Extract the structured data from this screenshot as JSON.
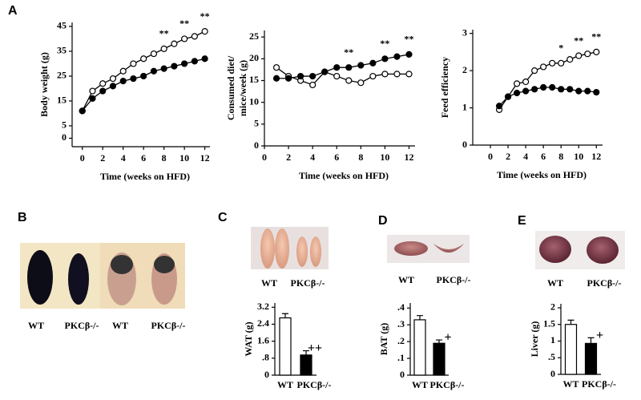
{
  "figure": {
    "panel_letters": [
      "A",
      "B",
      "C",
      "D",
      "E"
    ],
    "photo_captions": {
      "B": [
        "WT",
        "PKCβ-/-",
        "WT",
        "PKCβ-/-"
      ],
      "C": [
        "WT",
        "PKCβ-/-"
      ],
      "D": [
        "WT",
        "PKCβ-/-"
      ],
      "E": [
        "WT",
        "PKCβ-/-"
      ]
    }
  },
  "chart_data": [
    {
      "type": "line",
      "x_label": "Time (weeks on HFD)",
      "y_label": "Body weight (g)",
      "x": [
        0,
        1,
        2,
        3,
        4,
        5,
        6,
        7,
        8,
        9,
        10,
        11,
        12
      ],
      "series": [
        {
          "color": "#000000",
          "marker_fill": "#ffffff",
          "values": [
            11,
            19,
            22,
            24,
            27,
            30,
            32,
            34,
            36,
            38,
            40,
            41,
            43
          ]
        },
        {
          "color": "#000000",
          "marker_fill": "#000000",
          "values": [
            11,
            16,
            19,
            21,
            23,
            24,
            25,
            27,
            28,
            29,
            30,
            31,
            32
          ]
        }
      ],
      "xlim": [
        -1,
        12.5
      ],
      "xticks": [
        0,
        2,
        4,
        6,
        8,
        10,
        12
      ],
      "ylim": [
        -3.4,
        46.6
      ],
      "yticks": [
        0,
        5,
        15,
        25,
        35,
        45
      ],
      "annotations": [
        {
          "x": 8,
          "text": "**"
        },
        {
          "x": 10,
          "text": "**"
        },
        {
          "x": 12,
          "text": "**"
        }
      ]
    },
    {
      "type": "line",
      "x_label": "Time (weeks on HFD)",
      "y_label": [
        "Consumed diet/",
        "mice/week (g)"
      ],
      "x": [
        1,
        2,
        3,
        4,
        5,
        6,
        7,
        8,
        9,
        10,
        11,
        12
      ],
      "series": [
        {
          "color": "#000000",
          "marker_fill": "#ffffff",
          "values": [
            18,
            16,
            15,
            14,
            17,
            16,
            15,
            14.5,
            16,
            16.5,
            16.5,
            16.5
          ]
        },
        {
          "color": "#000000",
          "marker_fill": "#000000",
          "values": [
            15.5,
            15.5,
            16,
            16,
            17,
            18,
            18,
            18.5,
            19,
            20,
            20.5,
            21
          ]
        }
      ],
      "xlim": [
        0,
        12.5
      ],
      "xticks": [
        0,
        2,
        4,
        6,
        8,
        10,
        12
      ],
      "ylim": [
        0,
        26.5
      ],
      "yticks": [
        0,
        5,
        10,
        15,
        20,
        25
      ],
      "annotations": [
        {
          "x": 7,
          "text": "**"
        },
        {
          "x": 10,
          "text": "**"
        },
        {
          "x": 12,
          "text": "**"
        }
      ]
    },
    {
      "type": "line",
      "x_label": "Time (weeks on HFD)",
      "y_label": "Feed efficiency",
      "x": [
        1,
        2,
        3,
        4,
        5,
        6,
        7,
        8,
        9,
        10,
        11,
        12
      ],
      "series": [
        {
          "color": "#000000",
          "marker_fill": "#ffffff",
          "values": [
            0.95,
            1.3,
            1.65,
            1.7,
            2.0,
            2.1,
            2.2,
            2.2,
            2.3,
            2.4,
            2.45,
            2.5
          ]
        },
        {
          "color": "#000000",
          "marker_fill": "#000000",
          "values": [
            1.05,
            1.3,
            1.4,
            1.45,
            1.5,
            1.55,
            1.55,
            1.5,
            1.5,
            1.45,
            1.45,
            1.42
          ]
        }
      ],
      "xlim": [
        -2,
        12.7
      ],
      "xticks": [
        0,
        2,
        4,
        6,
        8,
        10,
        12
      ],
      "ylim": [
        0,
        3.1
      ],
      "yticks": [
        0,
        1,
        2,
        3
      ],
      "annotations": [
        {
          "x": 8,
          "text": "*"
        },
        {
          "x": 10,
          "text": "**"
        },
        {
          "x": 12,
          "text": "**"
        }
      ]
    },
    {
      "type": "bar",
      "y_label": "WAT (g)",
      "categories": [
        "WT",
        "PKCβ-/-"
      ],
      "values": [
        2.7,
        0.95
      ],
      "errors": [
        0.2,
        0.2
      ],
      "colors": [
        "#ffffff",
        "#000000"
      ],
      "ylim": [
        0,
        3.4
      ],
      "yticks": [
        0,
        {
          "value": 0.8,
          "label": ".8"
        },
        1.6,
        2.4,
        3.2
      ],
      "annotations": [
        {
          "x": "PKCβ-/-",
          "text": "++"
        }
      ]
    },
    {
      "type": "bar",
      "y_label": "BAT (g)",
      "categories": [
        "WT",
        "PKCβ-/-"
      ],
      "values": [
        0.33,
        0.19
      ],
      "errors": [
        0.025,
        0.02
      ],
      "colors": [
        "#ffffff",
        "#000000"
      ],
      "ylim": [
        0,
        0.43
      ],
      "yticks": [
        0,
        {
          "value": 0.1,
          "label": ".1"
        },
        {
          "value": 0.2,
          "label": ".2"
        },
        {
          "value": 0.3,
          "label": ".3"
        },
        {
          "value": 0.4,
          "label": ".4"
        }
      ],
      "annotations": [
        {
          "x": "PKCβ-/-",
          "text": "+"
        }
      ]
    },
    {
      "type": "bar",
      "y_label": "Liver (g)",
      "categories": [
        "WT",
        "PKCβ-/-"
      ],
      "values": [
        1.5,
        0.93
      ],
      "errors": [
        0.13,
        0.17
      ],
      "colors": [
        "#ffffff",
        "#000000"
      ],
      "ylim": [
        0,
        2.12
      ],
      "yticks": [
        0,
        {
          "value": 0.5,
          "label": ".5"
        },
        1,
        1.5,
        2
      ],
      "annotations": [
        {
          "x": "PKCβ-/-",
          "text": "+"
        }
      ]
    }
  ]
}
